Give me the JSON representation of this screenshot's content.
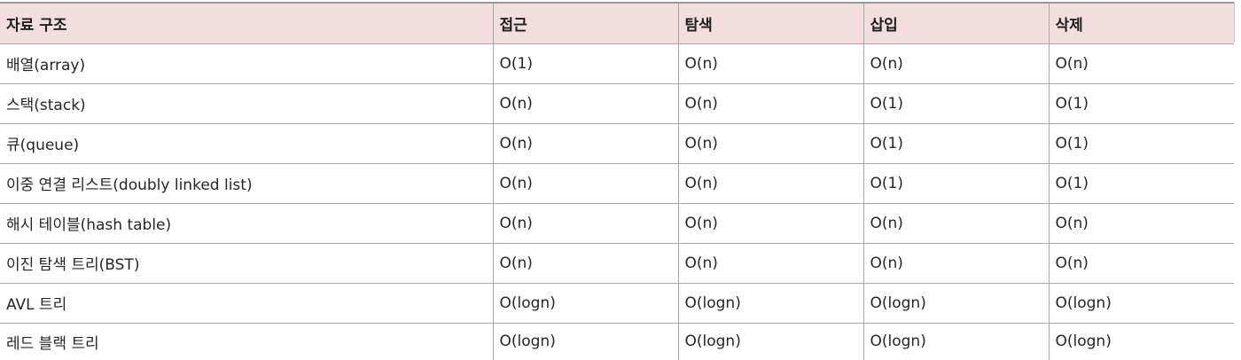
{
  "table": {
    "headers": [
      "자료 구조",
      "접근",
      "탐색",
      "삽입",
      "삭제"
    ],
    "rows": [
      [
        "배열(array)",
        "O(1)",
        "O(n)",
        "O(n)",
        "O(n)"
      ],
      [
        "스택(stack)",
        "O(n)",
        "O(n)",
        "O(1)",
        "O(1)"
      ],
      [
        "큐(queue)",
        "O(n)",
        "O(n)",
        "O(1)",
        "O(1)"
      ],
      [
        "이중 연결 리스트(doubly linked list)",
        "O(n)",
        "O(n)",
        "O(1)",
        "O(1)"
      ],
      [
        "해시 테이블(hash table)",
        "O(n)",
        "O(n)",
        "O(n)",
        "O(n)"
      ],
      [
        "이진 탐색 트리(BST)",
        "O(n)",
        "O(n)",
        "O(n)",
        "O(n)"
      ],
      [
        "AVL 트리",
        "O(logn)",
        "O(logn)",
        "O(logn)",
        "O(logn)"
      ],
      [
        "레드 블랙 트리",
        "O(logn)",
        "O(logn)",
        "O(logn)",
        "O(logn)"
      ]
    ]
  },
  "colors": {
    "header_background": "#f2dede",
    "grid_line": "#a8a8a8",
    "text": "#262626"
  }
}
